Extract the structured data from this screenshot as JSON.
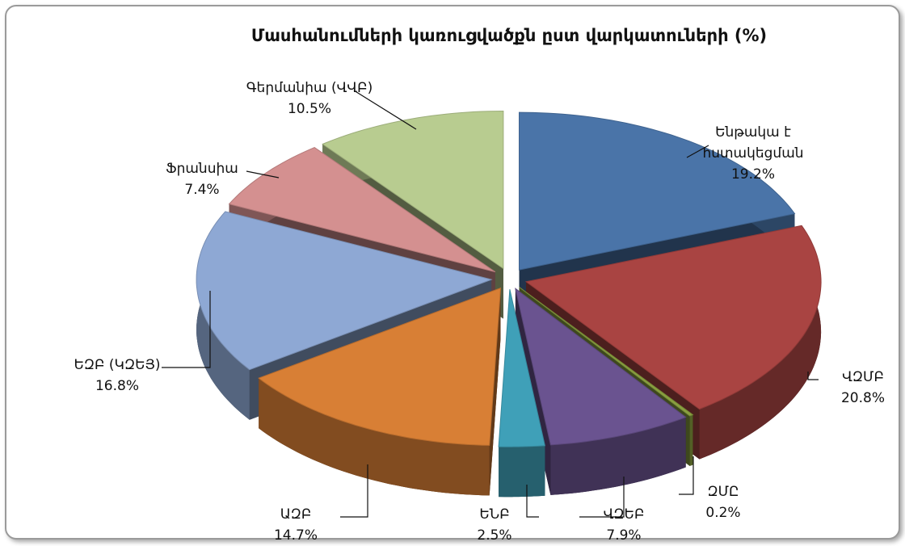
{
  "chart_data": {
    "type": "pie3d",
    "title": "Մասհանումների կառուցվածքն ըստ վարկատուների (%)",
    "categories": [
      "Ենթակա է հստակեցման",
      "ՎԶՄԲ",
      "ԶՄԸ",
      "ՎԶԵԲ",
      "ԵՆԲ",
      "ԱԶԲ",
      "ԵԶԲ (ԿԶԵՅ)",
      "Ֆրանսիա",
      "Գերմանիա (ՎՎԲ)"
    ],
    "values": [
      19.2,
      20.8,
      0.2,
      7.9,
      2.5,
      14.7,
      16.8,
      7.4,
      10.5
    ],
    "value_labels": [
      "19.2%",
      "20.8%",
      "0.2%",
      "7.9%",
      "2.5%",
      "14.7%",
      "16.8%",
      "7.4%",
      "10.5%"
    ],
    "colors": [
      "#4a74a8",
      "#a94442",
      "#8aa040",
      "#6a5390",
      "#3fa0b8",
      "#d87f35",
      "#8ea8d4",
      "#d49090",
      "#b8cc90"
    ]
  }
}
